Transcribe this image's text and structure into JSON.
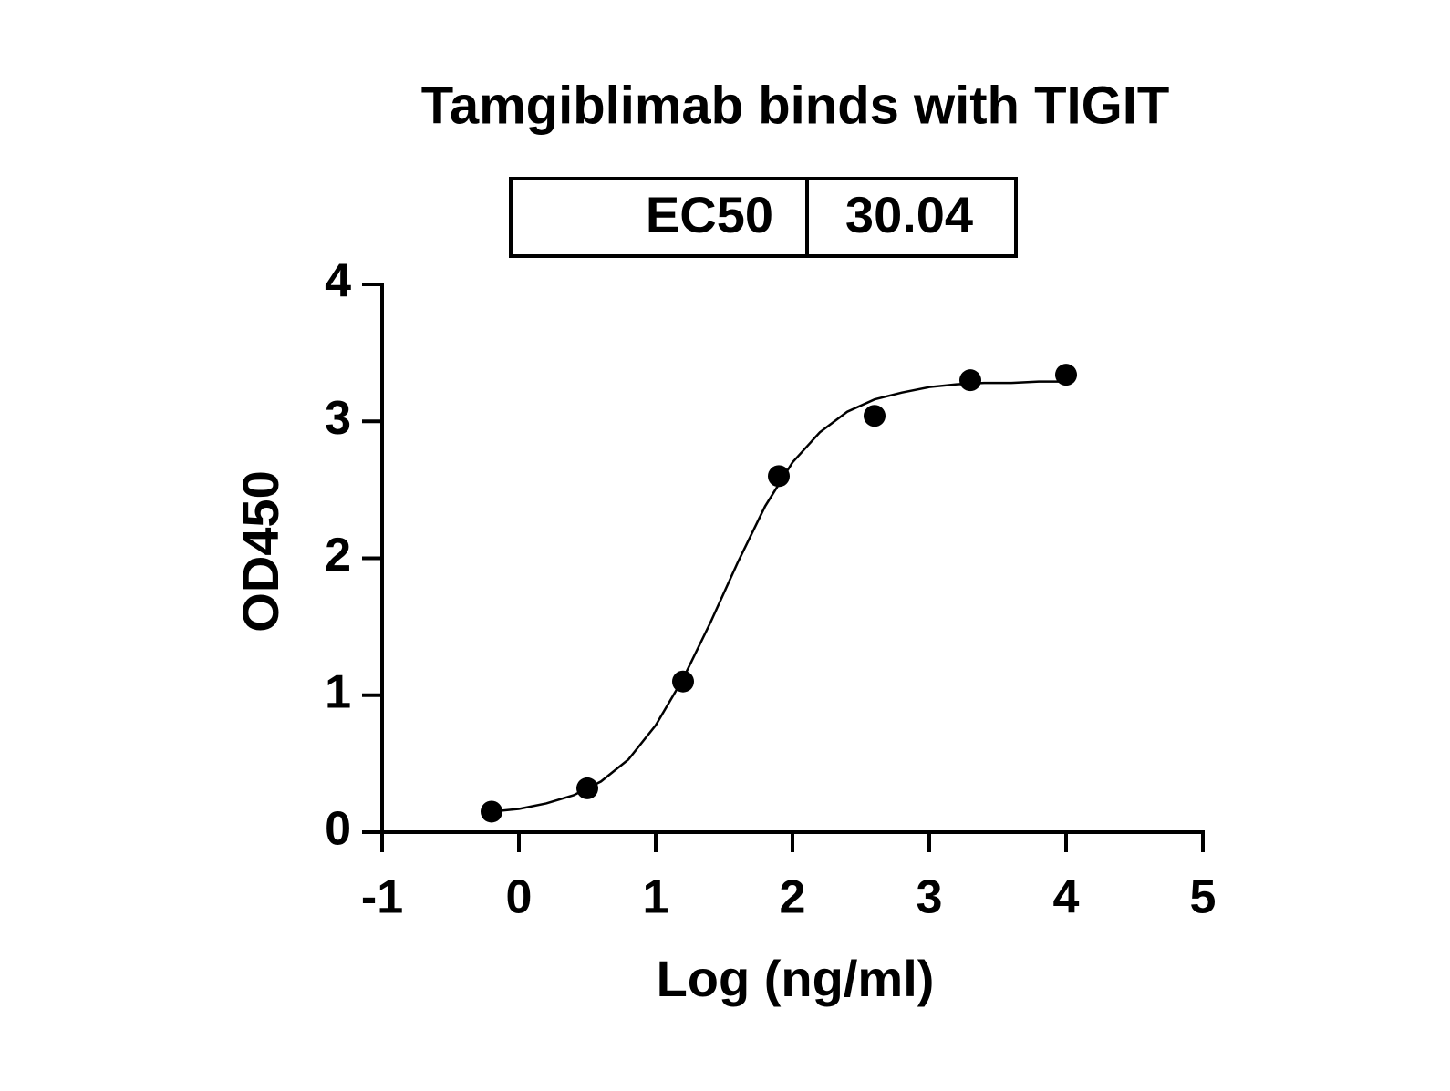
{
  "chart_data": {
    "type": "scatter",
    "title": "Tamgiblimab binds with TIGIT",
    "annotation_table": {
      "rows": [
        [
          "EC50",
          "30.04"
        ]
      ]
    },
    "x_label": "Log (ng/ml)",
    "y_label": "OD450",
    "xlim": [
      -1,
      5
    ],
    "xticks": [
      -1,
      0,
      1,
      2,
      3,
      4,
      5
    ],
    "ylim": [
      0,
      4
    ],
    "yticks": [
      0,
      1,
      2,
      3,
      4
    ],
    "color": "#000000",
    "points": {
      "x": [
        -0.2,
        0.5,
        1.2,
        1.9,
        2.6,
        3.3,
        4.0
      ],
      "values": [
        0.15,
        0.32,
        1.1,
        2.6,
        3.04,
        3.3,
        3.34
      ]
    },
    "curve": {
      "x": [
        -0.2,
        0.0,
        0.2,
        0.4,
        0.6,
        0.8,
        1.0,
        1.2,
        1.4,
        1.6,
        1.8,
        2.0,
        2.2,
        2.4,
        2.6,
        2.8,
        3.0,
        3.2,
        3.4,
        3.6,
        3.8,
        4.0
      ],
      "values": [
        0.15,
        0.17,
        0.21,
        0.27,
        0.37,
        0.53,
        0.78,
        1.12,
        1.53,
        1.97,
        2.38,
        2.7,
        2.92,
        3.07,
        3.16,
        3.21,
        3.25,
        3.27,
        3.28,
        3.28,
        3.29,
        3.29
      ]
    }
  }
}
